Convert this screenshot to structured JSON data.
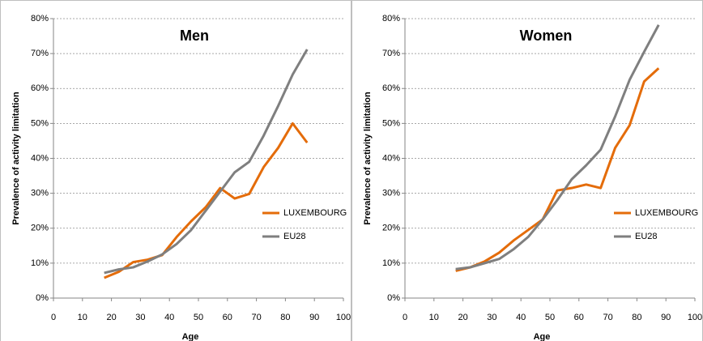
{
  "chart_data": [
    {
      "type": "line",
      "title": "Men",
      "xlabel": "Age",
      "ylabel": "Prevalence of activity limitation",
      "x": [
        17.5,
        22.5,
        27.5,
        32.5,
        37.5,
        42.5,
        47.5,
        52.5,
        57.5,
        62.5,
        67.5,
        72.5,
        77.5,
        82.5,
        87.5
      ],
      "series": [
        {
          "name": "LUXEMBOURG",
          "color": "#e46c0a",
          "values": [
            5.8,
            7.5,
            10.3,
            11,
            12.3,
            17.5,
            22,
            26,
            31.5,
            28.5,
            29.8,
            37.5,
            43,
            50,
            44.5
          ]
        },
        {
          "name": "EU28",
          "color": "#7f7f7f",
          "values": [
            7.2,
            8.2,
            8.8,
            10.5,
            12.5,
            15.5,
            19.5,
            25,
            30.5,
            36,
            39,
            46.5,
            55,
            64,
            71.2
          ]
        }
      ],
      "xlim": [
        0,
        100
      ],
      "ylim": [
        0,
        80
      ],
      "xticks": [
        0,
        10,
        20,
        30,
        40,
        50,
        60,
        70,
        80,
        90,
        100
      ],
      "yticks": [
        {
          "value": 0,
          "label": "0%"
        },
        {
          "value": 10,
          "label": "10%"
        },
        {
          "value": 20,
          "label": "20%"
        },
        {
          "value": 30,
          "label": "30%"
        },
        {
          "value": 40,
          "label": "40%"
        },
        {
          "value": 50,
          "label": "50%"
        },
        {
          "value": 60,
          "label": "60%"
        },
        {
          "value": 70,
          "label": "70%"
        },
        {
          "value": 80,
          "label": "80%"
        }
      ],
      "grid": true,
      "legend": "right"
    },
    {
      "type": "line",
      "title": "Women",
      "xlabel": "Age",
      "ylabel": "Prevalence of activity limitation",
      "x": [
        17.5,
        22.5,
        27.5,
        32.5,
        37.5,
        42.5,
        47.5,
        52.5,
        57.5,
        62.5,
        67.5,
        72.5,
        77.5,
        82.5,
        87.5
      ],
      "series": [
        {
          "name": "LUXEMBOURG",
          "color": "#e46c0a",
          "values": [
            7.8,
            8.8,
            10.5,
            13,
            16.5,
            19.5,
            22.5,
            30.8,
            31.5,
            32.5,
            31.5,
            43,
            49.5,
            62,
            65.8
          ]
        },
        {
          "name": "EU28",
          "color": "#7f7f7f",
          "values": [
            8.3,
            8.8,
            10,
            11.2,
            14,
            17.5,
            22.5,
            28,
            34,
            38,
            42.5,
            52,
            62.5,
            70.5,
            78.2
          ]
        }
      ],
      "xlim": [
        0,
        100
      ],
      "ylim": [
        0,
        80
      ],
      "xticks": [
        0,
        10,
        20,
        30,
        40,
        50,
        60,
        70,
        80,
        90,
        100
      ],
      "yticks": [
        {
          "value": 0,
          "label": "0%"
        },
        {
          "value": 10,
          "label": "10%"
        },
        {
          "value": 20,
          "label": "20%"
        },
        {
          "value": 30,
          "label": "30%"
        },
        {
          "value": 40,
          "label": "40%"
        },
        {
          "value": 50,
          "label": "50%"
        },
        {
          "value": 60,
          "label": "60%"
        },
        {
          "value": 70,
          "label": "70%"
        },
        {
          "value": 80,
          "label": "80%"
        }
      ],
      "grid": true,
      "legend": "right"
    }
  ]
}
